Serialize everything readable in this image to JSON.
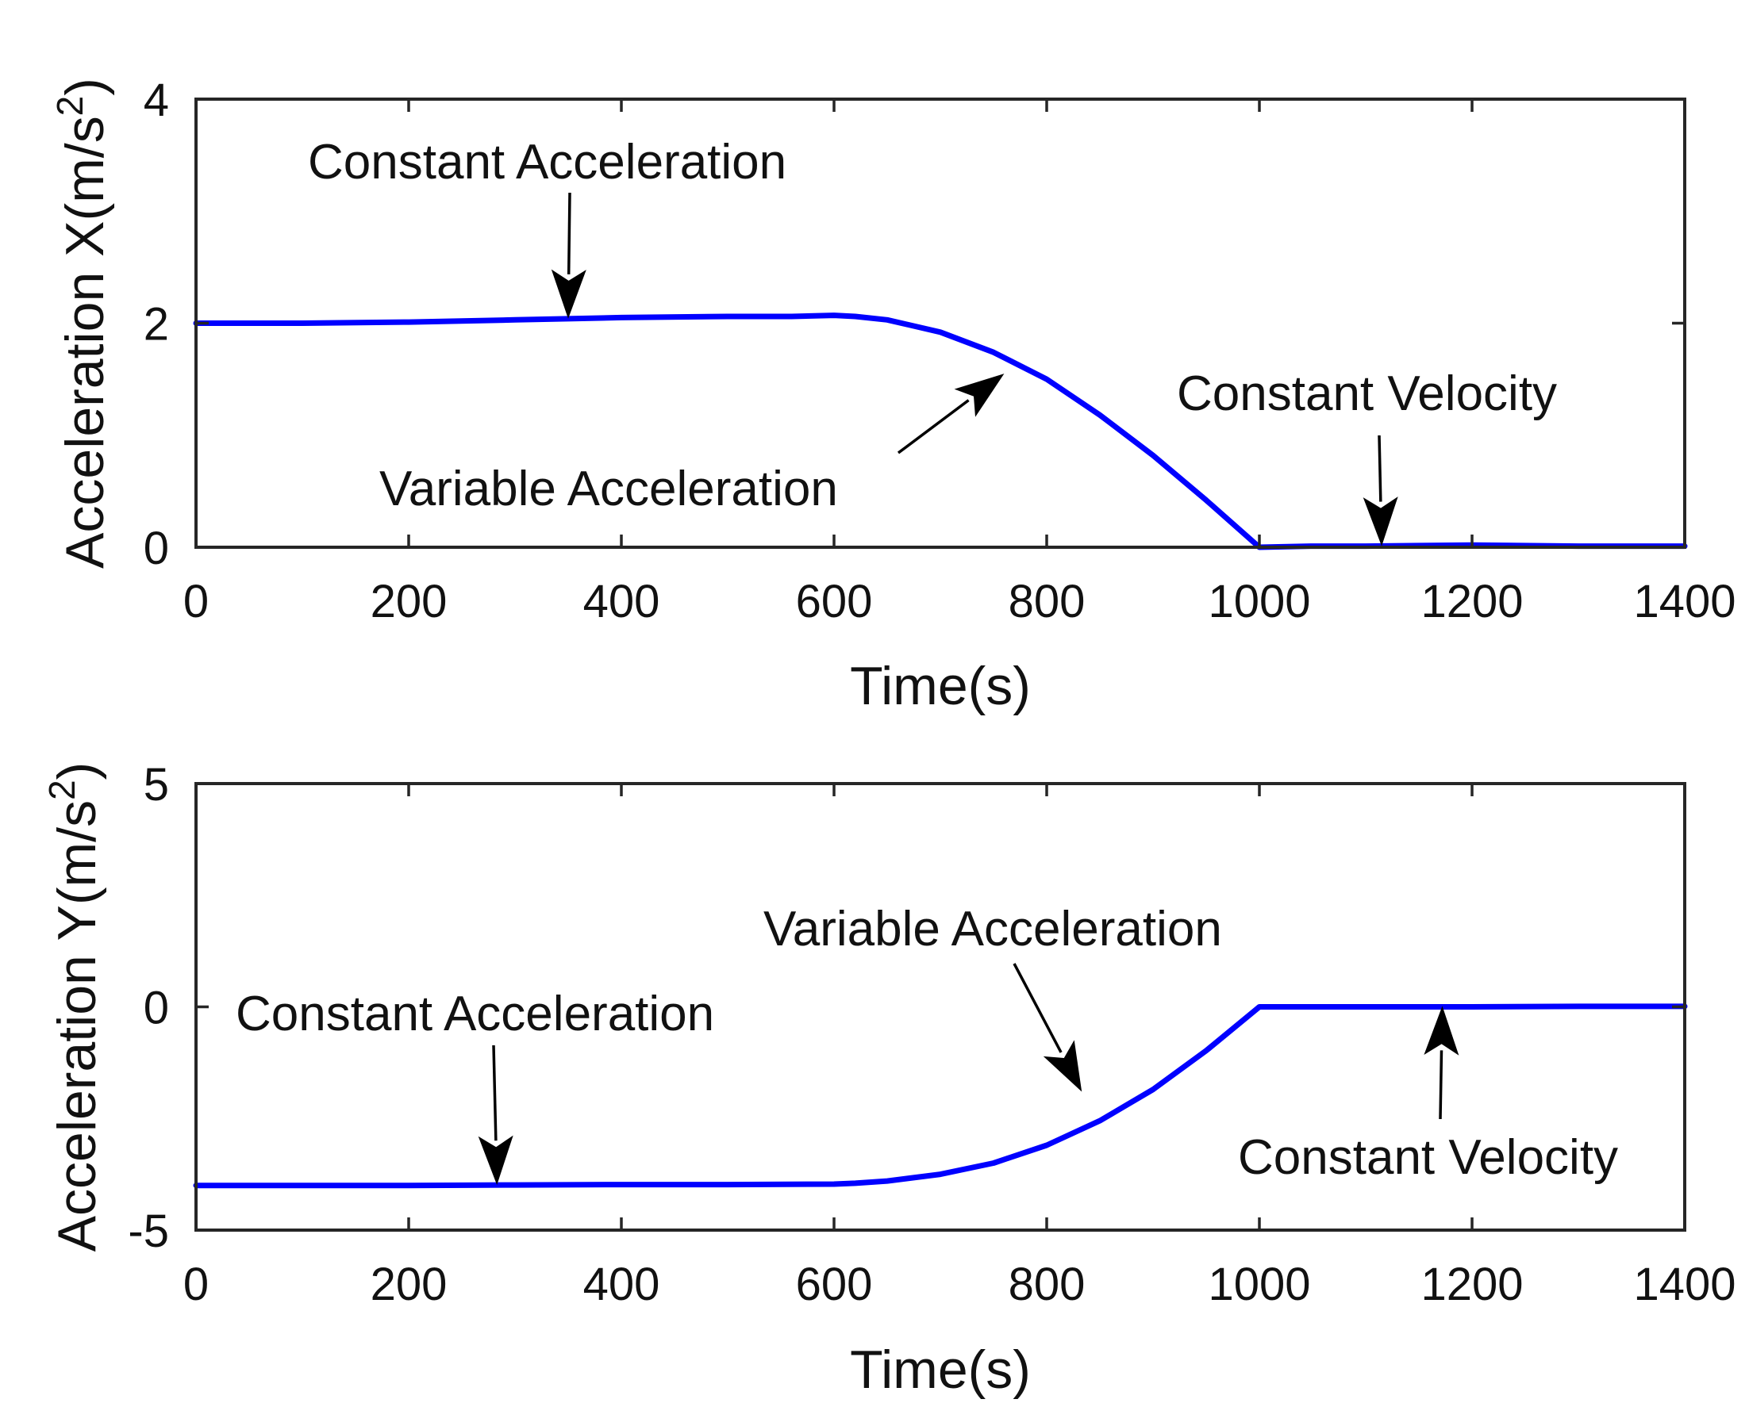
{
  "colors": {
    "series": "#0000ff",
    "axes": "#262626",
    "text": "#111111",
    "arrow": "#000000"
  },
  "chart_data": [
    {
      "type": "line",
      "title": "",
      "xlabel": "Time(s)",
      "ylabel_main": "Acceleration X(m/s",
      "ylabel_sup": "2",
      "ylabel_close": ")",
      "xlim": [
        0,
        1400
      ],
      "ylim": [
        0,
        4
      ],
      "xticks": [
        0,
        200,
        400,
        600,
        800,
        1000,
        1200,
        1400
      ],
      "xtick_labels": [
        "0",
        "200",
        "400",
        "600",
        "800",
        "1000",
        "1200",
        "1400"
      ],
      "yticks": [
        0,
        2,
        4
      ],
      "ytick_labels": [
        "0",
        "2",
        "4"
      ],
      "series": [
        {
          "name": "Acceleration X",
          "x": [
            0,
            100,
            200,
            300,
            350,
            400,
            500,
            560,
            600,
            620,
            650,
            700,
            750,
            800,
            850,
            900,
            950,
            1000,
            1050,
            1100,
            1200,
            1300,
            1400
          ],
          "y": [
            2.0,
            2.0,
            2.01,
            2.03,
            2.04,
            2.05,
            2.06,
            2.06,
            2.07,
            2.06,
            2.03,
            1.92,
            1.74,
            1.5,
            1.18,
            0.82,
            0.42,
            0.0,
            0.01,
            0.01,
            0.02,
            0.01,
            0.01
          ]
        }
      ],
      "annotations": [
        {
          "id": "const-acc",
          "text": "Constant Acceleration",
          "point": [
            350,
            2.04
          ]
        },
        {
          "id": "var-acc",
          "text": "Variable Acceleration",
          "point": [
            760,
            1.55
          ]
        },
        {
          "id": "const-vel",
          "text": "Constant Velocity",
          "point": [
            1115,
            0.01
          ]
        }
      ]
    },
    {
      "type": "line",
      "title": "",
      "xlabel": "Time(s)",
      "ylabel_main": "Acceleration Y(m/s",
      "ylabel_sup": "2",
      "ylabel_close": ")",
      "xlim": [
        0,
        1400
      ],
      "ylim": [
        -5,
        5
      ],
      "xticks": [
        0,
        200,
        400,
        600,
        800,
        1000,
        1200,
        1400
      ],
      "xtick_labels": [
        "0",
        "200",
        "400",
        "600",
        "800",
        "1000",
        "1200",
        "1400"
      ],
      "yticks": [
        -5,
        0,
        5
      ],
      "ytick_labels": [
        "-5",
        "0",
        "5"
      ],
      "series": [
        {
          "name": "Acceleration Y",
          "x": [
            0,
            100,
            200,
            300,
            400,
            500,
            600,
            620,
            650,
            700,
            750,
            800,
            850,
            900,
            950,
            1000,
            1100,
            1200,
            1300,
            1400
          ],
          "y": [
            -4.0,
            -4.0,
            -4.0,
            -3.99,
            -3.98,
            -3.98,
            -3.97,
            -3.95,
            -3.9,
            -3.75,
            -3.5,
            -3.1,
            -2.55,
            -1.85,
            -0.98,
            0.0,
            0.0,
            0.0,
            0.01,
            0.01
          ]
        }
      ],
      "annotations": [
        {
          "id": "const-acc",
          "text": "Constant Acceleration",
          "point": [
            283,
            -3.99
          ]
        },
        {
          "id": "var-acc",
          "text": "Variable Acceleration",
          "point": [
            833,
            -1.9
          ]
        },
        {
          "id": "const-vel",
          "text": "Constant Velocity",
          "point": [
            1172,
            0.02
          ]
        }
      ]
    }
  ]
}
